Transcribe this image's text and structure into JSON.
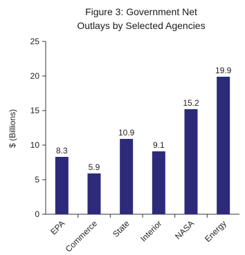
{
  "chart_data": {
    "type": "bar",
    "title_lines": [
      "Figure 3: Government Net",
      "Outlays by Selected Agencies"
    ],
    "ylabel": "$ (Billions)",
    "xlabel": "",
    "categories": [
      "EPA",
      "Commerce",
      "State",
      "Interior",
      "NASA",
      "Energy"
    ],
    "values": [
      8.3,
      5.9,
      10.9,
      9.1,
      15.2,
      19.9
    ],
    "data_labels": [
      "8.3",
      "5.9",
      "10.9",
      "9.1",
      "15.2",
      "19.9"
    ],
    "ylim": [
      0,
      25
    ],
    "yticks": [
      0,
      5,
      10,
      15,
      20,
      25
    ],
    "grid": false,
    "legend": "none",
    "bar_color": "#2e2a7a",
    "axis_color": "#333333"
  }
}
